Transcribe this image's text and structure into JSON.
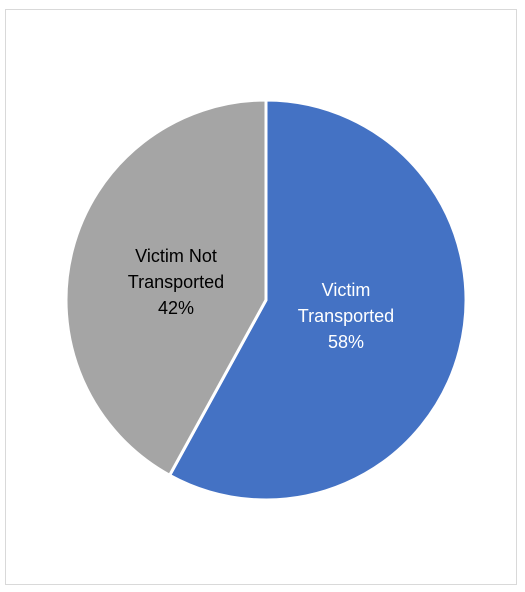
{
  "chart_data": {
    "type": "pie",
    "title": "",
    "slices": [
      {
        "label_lines": [
          "Victim",
          "Transported"
        ],
        "percent_label": "58%",
        "value": 58,
        "color": "#4472c4",
        "text_color": "#ffffff"
      },
      {
        "label_lines": [
          "Victim Not",
          "Transported"
        ],
        "percent_label": "42%",
        "value": 42,
        "color": "#a5a5a5",
        "text_color": "#000000"
      }
    ]
  }
}
